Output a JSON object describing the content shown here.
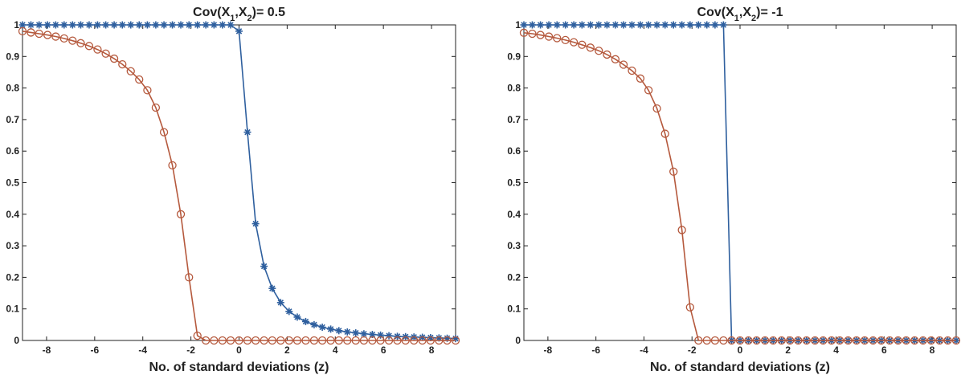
{
  "chart_data": [
    {
      "type": "line",
      "title_parts": [
        "Cov(X",
        "1",
        ",X",
        "2",
        ")= 0.5"
      ],
      "xlabel": "No. of standard deviations (z)",
      "ylabel": "",
      "xlim": [
        -9,
        9
      ],
      "ylim": [
        0,
        1
      ],
      "xticks": [
        -8,
        -6,
        -4,
        -2,
        0,
        2,
        4,
        6,
        8
      ],
      "yticks": [
        0,
        0.1,
        0.2,
        0.3,
        0.4,
        0.5,
        0.6,
        0.7,
        0.8,
        0.9,
        1
      ],
      "grid": false,
      "legend": "none",
      "series": [
        {
          "color": "#2e5f9e",
          "marker": "asterisk",
          "x": [
            -9,
            -8.65,
            -8.31,
            -7.96,
            -7.62,
            -7.27,
            -6.92,
            -6.58,
            -6.23,
            -5.88,
            -5.54,
            -5.19,
            -4.85,
            -4.5,
            -4.15,
            -3.81,
            -3.46,
            -3.12,
            -2.77,
            -2.42,
            -2.08,
            -1.73,
            -1.38,
            -1.04,
            -0.69,
            -0.35,
            0,
            0.35,
            0.69,
            1.04,
            1.38,
            1.73,
            2.08,
            2.42,
            2.77,
            3.12,
            3.46,
            3.81,
            4.15,
            4.5,
            4.85,
            5.19,
            5.54,
            5.88,
            6.23,
            6.58,
            6.92,
            7.27,
            7.62,
            7.96,
            8.31,
            8.65,
            9
          ],
          "y": [
            1,
            1,
            1,
            1,
            1,
            1,
            1,
            1,
            1,
            1,
            1,
            1,
            1,
            1,
            1,
            1,
            1,
            1,
            1,
            1,
            1,
            1,
            1,
            1,
            1,
            1,
            0.98,
            0.66,
            0.37,
            0.235,
            0.165,
            0.12,
            0.092,
            0.074,
            0.06,
            0.05,
            0.042,
            0.036,
            0.031,
            0.027,
            0.024,
            0.021,
            0.019,
            0.017,
            0.015,
            0.013,
            0.012,
            0.011,
            0.01,
            0.009,
            0.008,
            0.007,
            0.006
          ]
        },
        {
          "color": "#b5593d",
          "marker": "circle",
          "x": [
            -9,
            -8.65,
            -8.31,
            -7.96,
            -7.62,
            -7.27,
            -6.92,
            -6.58,
            -6.23,
            -5.88,
            -5.54,
            -5.19,
            -4.85,
            -4.5,
            -4.15,
            -3.81,
            -3.46,
            -3.12,
            -2.77,
            -2.42,
            -2.08,
            -1.73,
            -1.38,
            -1.04,
            -0.69,
            -0.35,
            0,
            0.35,
            0.69,
            1.04,
            1.38,
            1.73,
            2.08,
            2.42,
            2.77,
            3.12,
            3.46,
            3.81,
            4.15,
            4.5,
            4.85,
            5.19,
            5.54,
            5.88,
            6.23,
            6.58,
            6.92,
            7.27,
            7.62,
            7.96,
            8.31,
            8.65,
            9
          ],
          "y": [
            0.98,
            0.976,
            0.972,
            0.968,
            0.963,
            0.957,
            0.95,
            0.942,
            0.933,
            0.922,
            0.909,
            0.893,
            0.875,
            0.853,
            0.827,
            0.793,
            0.738,
            0.66,
            0.555,
            0.4,
            0.2,
            0.015,
            0,
            0,
            0,
            0,
            0,
            0,
            0,
            0,
            0,
            0,
            0,
            0,
            0,
            0,
            0,
            0,
            0,
            0,
            0,
            0,
            0,
            0,
            0,
            0,
            0,
            0,
            0,
            0,
            0,
            0,
            0
          ]
        }
      ]
    },
    {
      "type": "line",
      "title_parts": [
        "Cov(X",
        "1",
        ",X",
        "2",
        ")= -1"
      ],
      "xlabel": "No. of standard deviations (z)",
      "ylabel": "",
      "xlim": [
        -9,
        9
      ],
      "ylim": [
        0,
        1
      ],
      "xticks": [
        -8,
        -6,
        -4,
        -2,
        0,
        2,
        4,
        6,
        8
      ],
      "yticks": [
        0,
        0.1,
        0.2,
        0.3,
        0.4,
        0.5,
        0.6,
        0.7,
        0.8,
        0.9,
        1
      ],
      "grid": false,
      "legend": "none",
      "series": [
        {
          "color": "#2e5f9e",
          "marker": "asterisk",
          "x": [
            -9,
            -8.65,
            -8.31,
            -7.96,
            -7.62,
            -7.27,
            -6.92,
            -6.58,
            -6.23,
            -5.88,
            -5.54,
            -5.19,
            -4.85,
            -4.5,
            -4.15,
            -3.81,
            -3.46,
            -3.12,
            -2.77,
            -2.42,
            -2.08,
            -1.73,
            -1.38,
            -1.04,
            -0.69,
            -0.35,
            0,
            0.35,
            0.69,
            1.04,
            1.38,
            1.73,
            2.08,
            2.42,
            2.77,
            3.12,
            3.46,
            3.81,
            4.15,
            4.5,
            4.85,
            5.19,
            5.54,
            5.88,
            6.23,
            6.58,
            6.92,
            7.27,
            7.62,
            7.96,
            8.31,
            8.65,
            9
          ],
          "y": [
            1,
            1,
            1,
            1,
            1,
            1,
            1,
            1,
            1,
            1,
            1,
            1,
            1,
            1,
            1,
            1,
            1,
            1,
            1,
            1,
            1,
            1,
            1,
            1,
            1,
            0,
            0,
            0,
            0,
            0,
            0,
            0,
            0,
            0,
            0,
            0,
            0,
            0,
            0,
            0,
            0,
            0,
            0,
            0,
            0,
            0,
            0,
            0,
            0,
            0,
            0,
            0,
            0
          ]
        },
        {
          "color": "#b5593d",
          "marker": "circle",
          "x": [
            -9,
            -8.65,
            -8.31,
            -7.96,
            -7.62,
            -7.27,
            -6.92,
            -6.58,
            -6.23,
            -5.88,
            -5.54,
            -5.19,
            -4.85,
            -4.5,
            -4.15,
            -3.81,
            -3.46,
            -3.12,
            -2.77,
            -2.42,
            -2.08,
            -1.73,
            -1.38,
            -1.04,
            -0.69,
            -0.35,
            0,
            0.35,
            0.69,
            1.04,
            1.38,
            1.73,
            2.08,
            2.42,
            2.77,
            3.12,
            3.46,
            3.81,
            4.15,
            4.5,
            4.85,
            5.19,
            5.54,
            5.88,
            6.23,
            6.58,
            6.92,
            7.27,
            7.62,
            7.96,
            8.31,
            8.65,
            9
          ],
          "y": [
            0.975,
            0.972,
            0.968,
            0.963,
            0.958,
            0.952,
            0.945,
            0.937,
            0.928,
            0.918,
            0.906,
            0.891,
            0.874,
            0.855,
            0.83,
            0.793,
            0.735,
            0.655,
            0.535,
            0.35,
            0.105,
            0,
            0,
            0,
            0,
            0,
            0,
            0,
            0,
            0,
            0,
            0,
            0,
            0,
            0,
            0,
            0,
            0,
            0,
            0,
            0,
            0,
            0,
            0,
            0,
            0,
            0,
            0,
            0,
            0,
            0,
            0,
            0
          ]
        }
      ]
    }
  ]
}
